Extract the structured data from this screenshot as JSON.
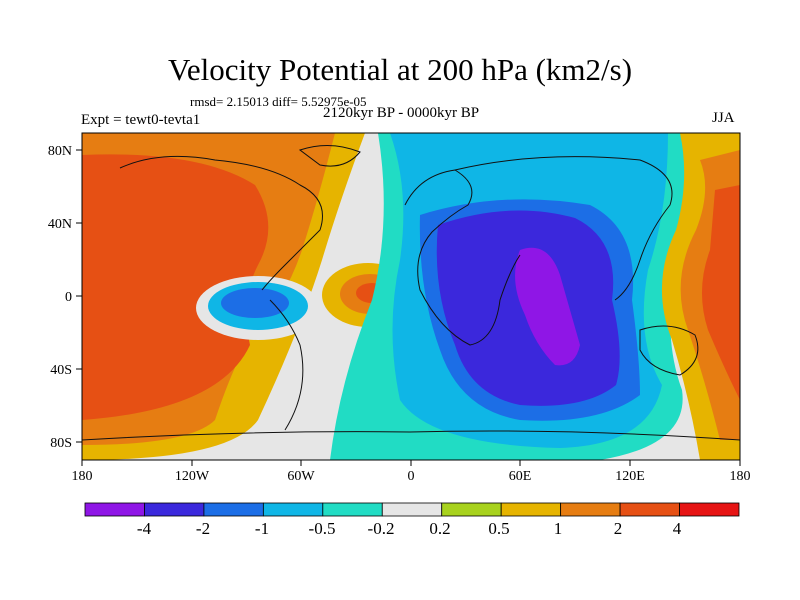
{
  "title": "Velocity Potential at 200 hPa (km2/s)",
  "stats": "rmsd= 2.15013 diff= 5.52975e-05",
  "experiment": "Expt = tewt0-tevta1",
  "period": "2120kyr BP - 0000kyr BP",
  "season": "JJA",
  "lon_ticks": [
    "180",
    "120W",
    "60W",
    "0",
    "60E",
    "120E",
    "180"
  ],
  "lat_ticks": [
    "80N",
    "40N",
    "0",
    "40S",
    "80S"
  ],
  "colorbar": {
    "colors": [
      "#8f16e6",
      "#3b28dc",
      "#1c6ee6",
      "#0fb6e6",
      "#21dcc4",
      "#e6e6e6",
      "#a8d21e",
      "#e6b400",
      "#e67d12",
      "#e65014",
      "#e61414"
    ],
    "labels": [
      "-4",
      "-2",
      "-1",
      "-0.5",
      "-0.2",
      "0.2",
      "0.5",
      "1",
      "2",
      "4"
    ]
  }
}
